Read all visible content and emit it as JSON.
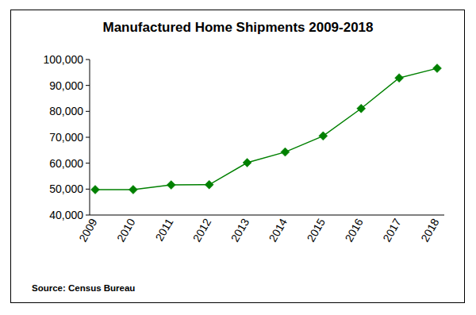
{
  "chart_data": {
    "type": "line",
    "title": "Manufactured Home Shipments 2009-2018",
    "annotation": "Source: Census Bureau",
    "categories": [
      "2009",
      "2010",
      "2011",
      "2012",
      "2013",
      "2014",
      "2015",
      "2016",
      "2017",
      "2018"
    ],
    "values": [
      49800,
      49800,
      51600,
      51700,
      60200,
      64300,
      70500,
      81100,
      92900,
      96600
    ],
    "color": "#008000",
    "marker": "diamond",
    "grid": false,
    "ylim": [
      40000,
      100000
    ],
    "yticks": [
      {
        "value": 40000,
        "label": "40,000"
      },
      {
        "value": 50000,
        "label": "50,000"
      },
      {
        "value": 60000,
        "label": "60,000"
      },
      {
        "value": 70000,
        "label": "70,000"
      },
      {
        "value": 80000,
        "label": "80,000"
      },
      {
        "value": 90000,
        "label": "90,000"
      },
      {
        "value": 100000,
        "label": "100,000"
      }
    ]
  }
}
